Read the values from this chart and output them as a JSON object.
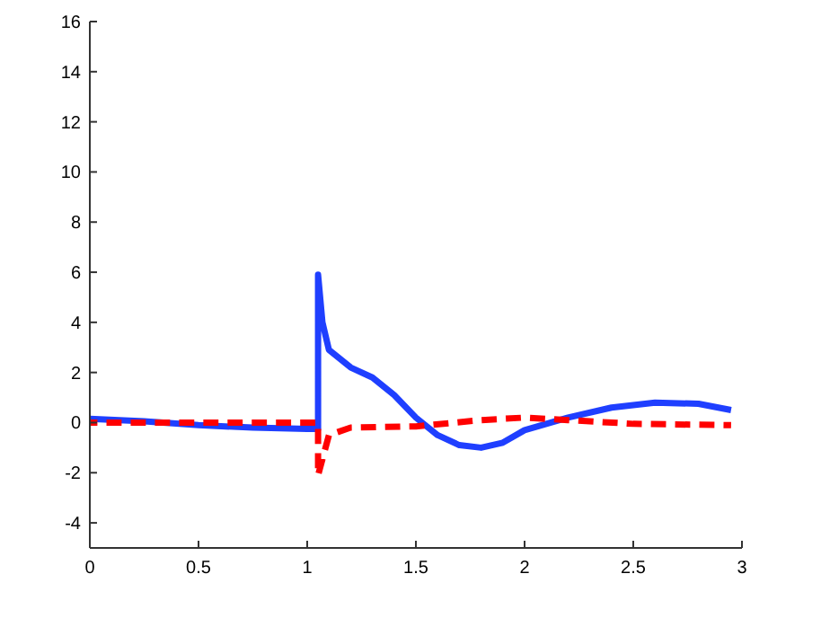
{
  "chart_data": {
    "type": "line",
    "xlim": [
      0,
      3
    ],
    "ylim": [
      -5,
      16
    ],
    "xticks": [
      0,
      0.5,
      1,
      1.5,
      2,
      2.5,
      3
    ],
    "yticks": [
      -4,
      -2,
      0,
      2,
      4,
      6,
      8,
      10,
      12,
      14,
      16
    ],
    "grid": false,
    "series": [
      {
        "color": "#1f3fff",
        "line_style": "solid",
        "x": [
          0,
          0.25,
          0.5,
          0.75,
          1.0,
          1.05,
          1.05,
          1.07,
          1.1,
          1.2,
          1.3,
          1.4,
          1.5,
          1.6,
          1.7,
          1.8,
          1.9,
          2.0,
          2.2,
          2.4,
          2.6,
          2.8,
          2.95
        ],
        "values": [
          0.15,
          0.05,
          -0.1,
          -0.2,
          -0.25,
          -0.25,
          5.9,
          4,
          2.9,
          2.2,
          1.8,
          1.1,
          0.2,
          -0.5,
          -0.9,
          -1.0,
          -0.8,
          -0.3,
          0.2,
          0.6,
          0.8,
          0.75,
          0.5
        ]
      },
      {
        "color": "#ff0000",
        "line_style": "dashed",
        "x": [
          0,
          0.5,
          1.05,
          1.05,
          1.1,
          1.2,
          1.5,
          1.8,
          2.0,
          2.2,
          2.5,
          2.95
        ],
        "values": [
          0,
          0,
          0,
          -2.1,
          -0.5,
          -0.2,
          -0.15,
          0.1,
          0.2,
          0.1,
          -0.05,
          -0.1
        ]
      }
    ]
  }
}
